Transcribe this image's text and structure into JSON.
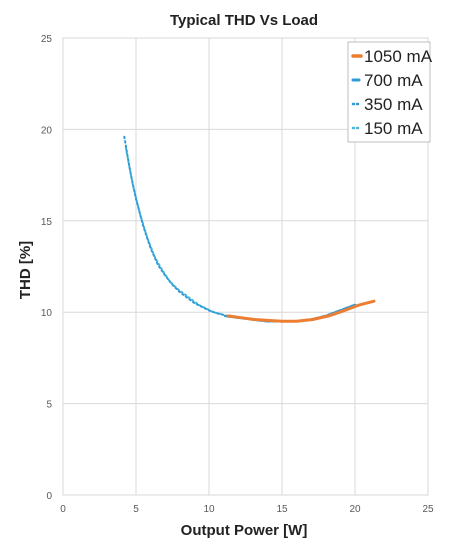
{
  "chart_data": {
    "type": "line",
    "title": "Typical THD Vs Load",
    "xlabel": "Output Power [W]",
    "ylabel": "THD [%]",
    "xlim": [
      0,
      25
    ],
    "ylim": [
      0,
      25
    ],
    "xticks": [
      "0",
      "5",
      "10",
      "15",
      "20",
      "25"
    ],
    "yticks": [
      "0",
      "5",
      "10",
      "15",
      "20",
      "25"
    ],
    "grid": true,
    "legend_position": "top-right",
    "series": [
      {
        "name": "1050 mA",
        "style": "solid",
        "color": "#ED7D31",
        "x": [
          11.3,
          12.2,
          13.1,
          14.0,
          15.0,
          16.0,
          17.1,
          18.2,
          19.3,
          20.3,
          21.3
        ],
        "y": [
          9.8,
          9.7,
          9.6,
          9.55,
          9.5,
          9.5,
          9.6,
          9.8,
          10.1,
          10.4,
          10.6
        ]
      },
      {
        "name": "700 mA",
        "style": "dashed",
        "color": "#2E9BD6",
        "x": [
          11.1,
          12.0,
          13.0,
          14.0,
          15.0,
          16.0,
          17.0,
          18.0,
          19.0,
          20.0
        ],
        "y": [
          9.8,
          9.7,
          9.6,
          9.5,
          9.5,
          9.5,
          9.6,
          9.8,
          10.1,
          10.4
        ]
      },
      {
        "name": "350 mA",
        "style": "dotted",
        "color": "#2E9BD6",
        "x": [
          4.2,
          4.6,
          5.0,
          5.5,
          6.0,
          6.5,
          7.0,
          7.5,
          8.0,
          8.5,
          9.0,
          9.5,
          10.0,
          10.5,
          11.0
        ],
        "y": [
          19.6,
          17.7,
          16.2,
          14.7,
          13.5,
          12.6,
          12.0,
          11.5,
          11.1,
          10.8,
          10.5,
          10.3,
          10.1,
          9.95,
          9.85
        ]
      },
      {
        "name": "150 mA",
        "style": "dotted",
        "color": "#49B8DA",
        "x": [
          4.3,
          4.8,
          5.3,
          5.8,
          6.3,
          6.8,
          7.3,
          7.8,
          8.3,
          8.8,
          9.3,
          9.8,
          10.3,
          10.8
        ],
        "y": [
          19.0,
          16.9,
          15.3,
          14.0,
          13.0,
          12.3,
          11.7,
          11.3,
          11.0,
          10.7,
          10.4,
          10.2,
          10.0,
          9.9
        ]
      }
    ]
  }
}
